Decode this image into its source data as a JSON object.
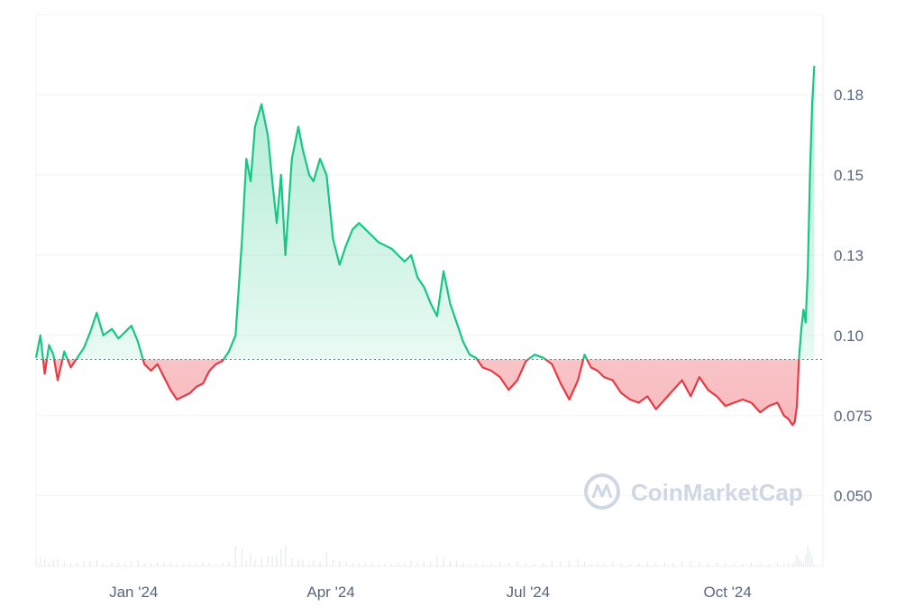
{
  "chart_data": {
    "type": "area",
    "title": "",
    "xlabel": "",
    "ylabel": "",
    "watermark": "CoinMarketCap",
    "baseline": 0.0925,
    "ylim": [
      0.028,
      0.2
    ],
    "xlim": [
      "2023-11-27",
      "2024-11-24"
    ],
    "y_ticks": [
      {
        "value": 0.05,
        "label": "0.050"
      },
      {
        "value": 0.075,
        "label": "0.075"
      },
      {
        "value": 0.1,
        "label": "0.10"
      },
      {
        "value": 0.125,
        "label": "0.13"
      },
      {
        "value": 0.15,
        "label": "0.15"
      },
      {
        "value": 0.175,
        "label": "0.18"
      }
    ],
    "x_ticks": [
      {
        "date": "2024-01-11",
        "label": "Jan '24"
      },
      {
        "date": "2024-04-11",
        "label": "Apr '24"
      },
      {
        "date": "2024-07-11",
        "label": "Jul '24"
      },
      {
        "date": "2024-10-11",
        "label": "Oct '24"
      }
    ],
    "colors": {
      "up_line": "#16c784",
      "down_line": "#ea3943",
      "up_fill": "#16c784",
      "down_fill": "#ea3943",
      "baseline": "#6b7280",
      "grid": "#eff2f5",
      "axis_text": "#58667e",
      "volume": "#e6e9ee"
    },
    "series": [
      {
        "x": [
          "2023-11-27",
          "2023-11-29",
          "2023-12-01",
          "2023-12-03",
          "2023-12-05",
          "2023-12-07",
          "2023-12-10",
          "2023-12-13",
          "2023-12-16",
          "2023-12-19",
          "2023-12-22",
          "2023-12-25",
          "2023-12-28",
          "2024-01-01",
          "2024-01-04",
          "2024-01-07",
          "2024-01-10",
          "2024-01-13",
          "2024-01-16",
          "2024-01-19",
          "2024-01-22",
          "2024-01-25",
          "2024-01-28",
          "2024-01-31",
          "2024-02-03",
          "2024-02-06",
          "2024-02-09",
          "2024-02-12",
          "2024-02-15",
          "2024-02-18",
          "2024-02-21",
          "2024-02-24",
          "2024-02-27",
          "2024-03-01",
          "2024-03-03",
          "2024-03-05",
          "2024-03-07",
          "2024-03-10",
          "2024-03-13",
          "2024-03-15",
          "2024-03-17",
          "2024-03-19",
          "2024-03-21",
          "2024-03-24",
          "2024-03-27",
          "2024-03-29",
          "2024-04-01",
          "2024-04-03",
          "2024-04-06",
          "2024-04-09",
          "2024-04-12",
          "2024-04-15",
          "2024-04-18",
          "2024-04-21",
          "2024-04-24",
          "2024-04-27",
          "2024-04-30",
          "2024-05-03",
          "2024-05-06",
          "2024-05-09",
          "2024-05-12",
          "2024-05-15",
          "2024-05-18",
          "2024-05-21",
          "2024-05-24",
          "2024-05-27",
          "2024-05-30",
          "2024-06-02",
          "2024-06-05",
          "2024-06-08",
          "2024-06-11",
          "2024-06-14",
          "2024-06-17",
          "2024-06-20",
          "2024-06-24",
          "2024-06-28",
          "2024-07-02",
          "2024-07-06",
          "2024-07-10",
          "2024-07-14",
          "2024-07-18",
          "2024-07-22",
          "2024-07-26",
          "2024-07-30",
          "2024-08-03",
          "2024-08-06",
          "2024-08-09",
          "2024-08-12",
          "2024-08-15",
          "2024-08-19",
          "2024-08-23",
          "2024-08-27",
          "2024-08-31",
          "2024-09-04",
          "2024-09-08",
          "2024-09-12",
          "2024-09-16",
          "2024-09-20",
          "2024-09-24",
          "2024-09-28",
          "2024-10-02",
          "2024-10-06",
          "2024-10-10",
          "2024-10-14",
          "2024-10-18",
          "2024-10-22",
          "2024-10-26",
          "2024-10-30",
          "2024-11-03",
          "2024-11-06",
          "2024-11-08",
          "2024-11-10",
          "2024-11-11",
          "2024-11-12",
          "2024-11-13",
          "2024-11-14",
          "2024-11-15",
          "2024-11-16",
          "2024-11-17",
          "2024-11-18",
          "2024-11-19",
          "2024-11-20"
        ],
        "y": [
          0.093,
          0.1,
          0.088,
          0.097,
          0.094,
          0.086,
          0.095,
          0.09,
          0.093,
          0.096,
          0.101,
          0.107,
          0.1,
          0.102,
          0.099,
          0.101,
          0.103,
          0.098,
          0.091,
          0.089,
          0.091,
          0.087,
          0.083,
          0.08,
          0.081,
          0.082,
          0.084,
          0.085,
          0.089,
          0.091,
          0.092,
          0.095,
          0.1,
          0.13,
          0.155,
          0.148,
          0.165,
          0.172,
          0.162,
          0.148,
          0.135,
          0.15,
          0.125,
          0.155,
          0.165,
          0.158,
          0.15,
          0.148,
          0.155,
          0.15,
          0.13,
          0.122,
          0.128,
          0.133,
          0.135,
          0.133,
          0.131,
          0.129,
          0.128,
          0.127,
          0.125,
          0.123,
          0.125,
          0.118,
          0.115,
          0.11,
          0.106,
          0.12,
          0.11,
          0.104,
          0.098,
          0.094,
          0.093,
          0.09,
          0.089,
          0.087,
          0.083,
          0.086,
          0.092,
          0.094,
          0.093,
          0.091,
          0.085,
          0.08,
          0.086,
          0.094,
          0.09,
          0.089,
          0.087,
          0.086,
          0.082,
          0.08,
          0.079,
          0.081,
          0.077,
          0.08,
          0.083,
          0.086,
          0.081,
          0.087,
          0.083,
          0.081,
          0.078,
          0.079,
          0.08,
          0.079,
          0.076,
          0.078,
          0.079,
          0.075,
          0.074,
          0.072,
          0.073,
          0.078,
          0.093,
          0.102,
          0.108,
          0.104,
          0.12,
          0.15,
          0.172,
          0.184
        ]
      }
    ],
    "grid": true,
    "legend": "none"
  }
}
